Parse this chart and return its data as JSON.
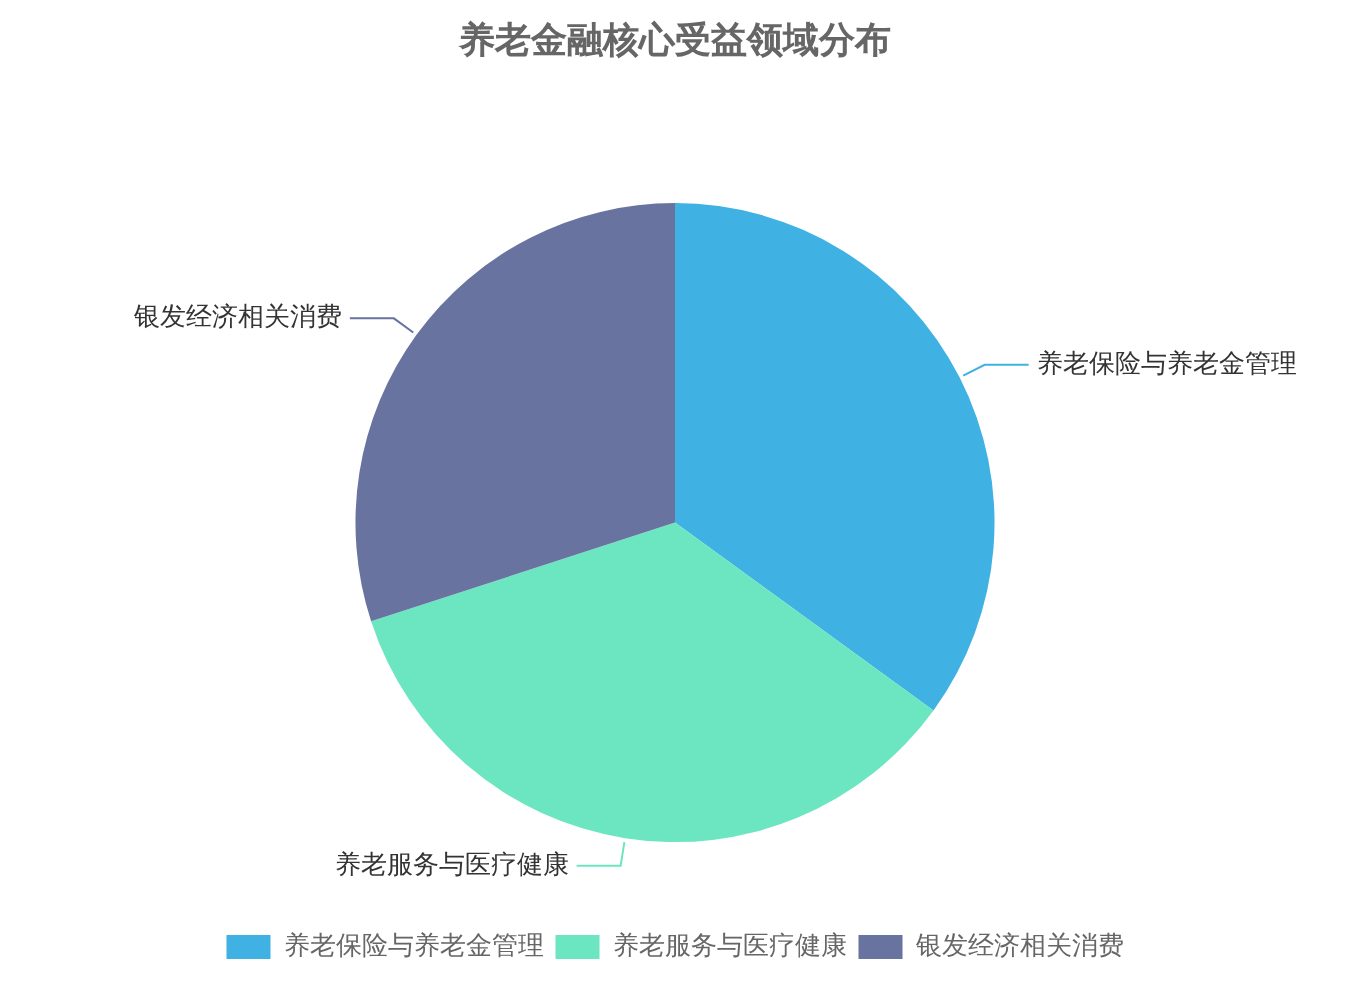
{
  "chart_data": {
    "type": "pie",
    "title": "养老金融核心受益领域分布",
    "categories": [
      "养老保险与养老金管理",
      "养老服务与医疗健康",
      "银发经济相关消费"
    ],
    "values": [
      35,
      35,
      30
    ],
    "colors": [
      "#3fb1e3",
      "#6be6c1",
      "#68739f"
    ],
    "legend": "bottom"
  }
}
